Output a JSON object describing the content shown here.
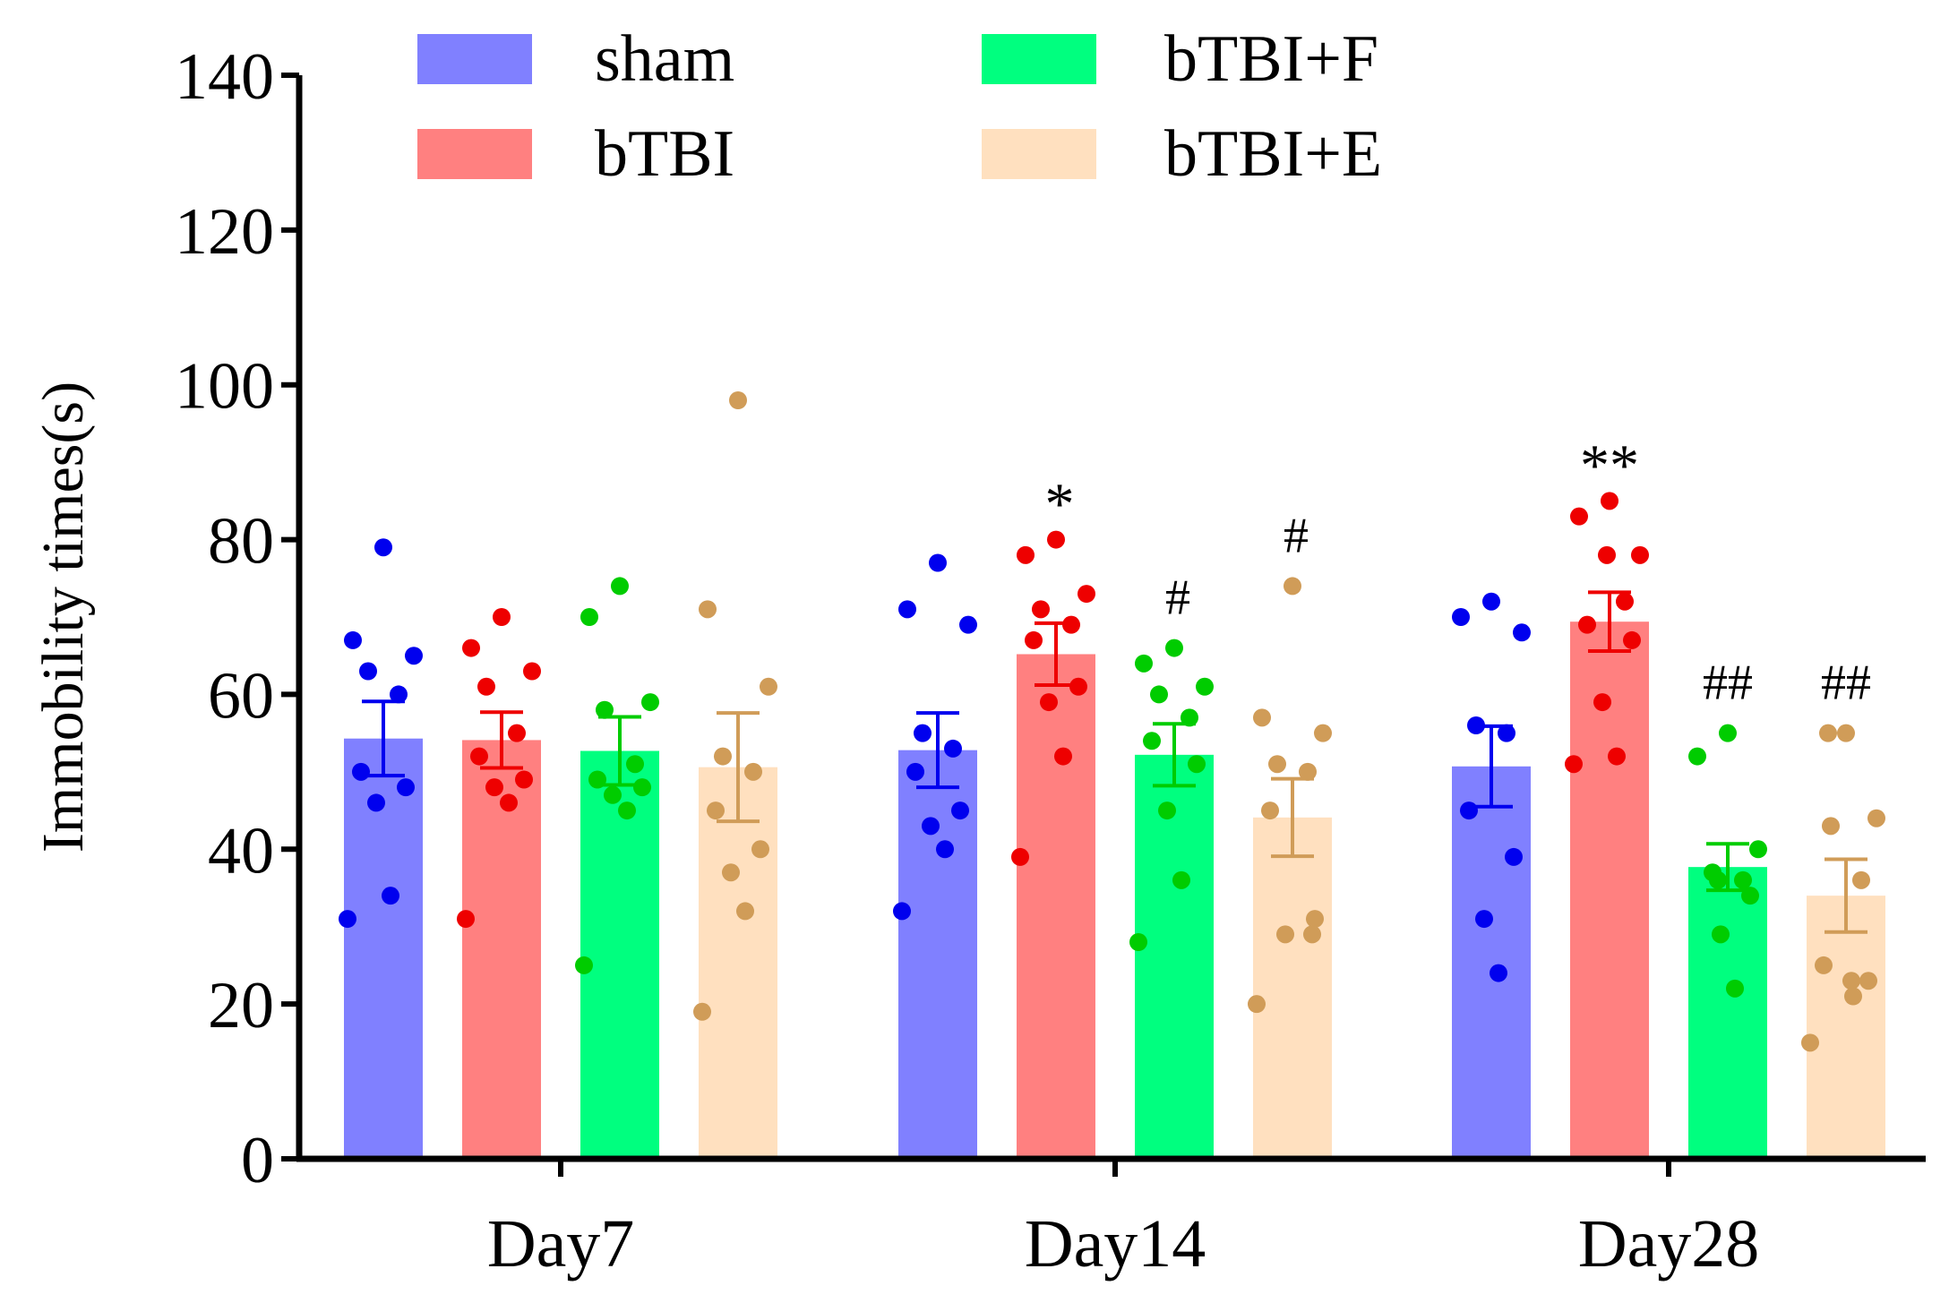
{
  "chart_data": {
    "type": "bar",
    "title": "",
    "xlabel": "",
    "ylabel": "Immobility times(s)",
    "ylim": [
      0,
      140
    ],
    "yticks": [
      0,
      20,
      40,
      60,
      80,
      100,
      120,
      140
    ],
    "categories": [
      "Day7",
      "Day14",
      "Day28"
    ],
    "legend_position": "top",
    "series": [
      {
        "name": "sham",
        "bar_color": "#8080ff",
        "point_color": "#0000ee",
        "values": [
          54.3,
          52.8,
          50.7
        ],
        "sem": [
          4.8,
          4.8,
          5.2
        ],
        "points": [
          [
            79,
            67,
            65,
            63,
            60,
            50,
            48,
            46,
            34,
            31
          ],
          [
            77,
            71,
            69,
            55,
            53,
            50,
            45,
            43,
            40,
            32
          ],
          [
            72,
            70,
            68,
            56,
            55,
            45,
            39,
            31,
            24
          ]
        ],
        "significance": [
          "",
          "",
          ""
        ]
      },
      {
        "name": "bTBI",
        "bar_color": "#ff8080",
        "point_color": "#ee0000",
        "values": [
          54.1,
          65.2,
          69.4
        ],
        "sem": [
          3.6,
          4.0,
          3.8
        ],
        "points": [
          [
            70,
            66,
            63,
            61,
            55,
            52,
            49,
            48,
            46,
            31
          ],
          [
            80,
            78,
            73,
            71,
            69,
            67,
            61,
            59,
            52,
            39
          ],
          [
            85,
            83,
            78,
            78,
            72,
            69,
            67,
            59,
            52,
            51
          ]
        ],
        "significance": [
          "",
          "*",
          "**"
        ]
      },
      {
        "name": "bTBI+F",
        "bar_color": "#00ff7f",
        "point_color": "#00cc00",
        "values": [
          52.7,
          52.2,
          37.7
        ],
        "sem": [
          4.4,
          4.0,
          3.0
        ],
        "points": [
          [
            74,
            70,
            59,
            58,
            51,
            49,
            48,
            47,
            45,
            25
          ],
          [
            66,
            64,
            61,
            60,
            57,
            54,
            51,
            45,
            36,
            28
          ],
          [
            55,
            52,
            40,
            37,
            36,
            36,
            34,
            29,
            22
          ]
        ],
        "significance": [
          "",
          "#",
          "##"
        ]
      },
      {
        "name": "bTBI+E",
        "bar_color": "#ffe0bf",
        "point_color": "#d09c58",
        "values": [
          50.6,
          44.1,
          34.0
        ],
        "sem": [
          7.0,
          5.0,
          4.7
        ],
        "points": [
          [
            98,
            71,
            61,
            52,
            50,
            45,
            40,
            37,
            32,
            19
          ],
          [
            74,
            57,
            55,
            51,
            50,
            45,
            31,
            29,
            29,
            20
          ],
          [
            55,
            55,
            44,
            43,
            36,
            25,
            23,
            23,
            21,
            15
          ]
        ],
        "significance": [
          "",
          "#",
          "##"
        ]
      }
    ]
  }
}
